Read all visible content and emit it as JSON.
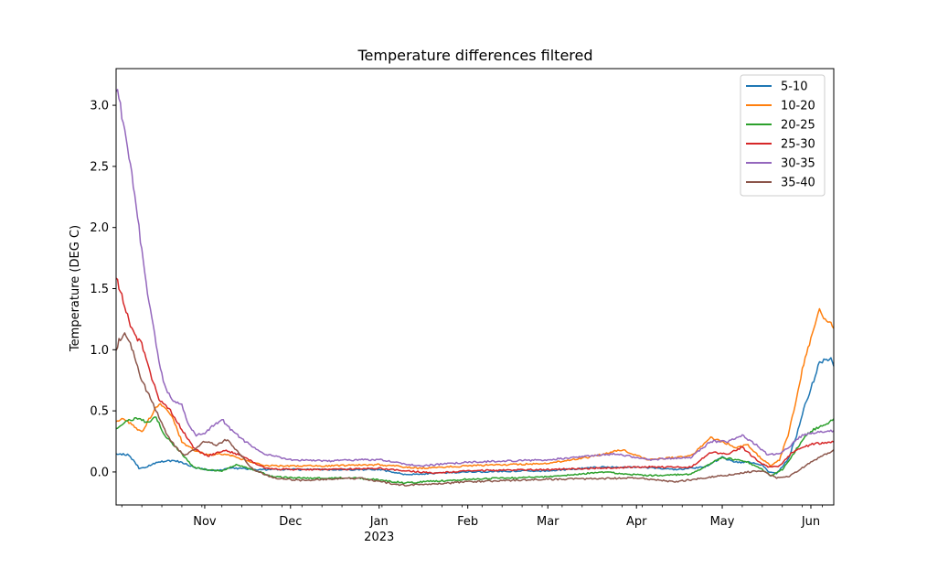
{
  "chart_data": {
    "type": "line",
    "title": "Temperature differences filtered",
    "xlabel": "",
    "ylabel": "Temperature (DEG C)",
    "x_unit": "date",
    "xlim": [
      "2022-10-01",
      "2023-06-09"
    ],
    "ylim": [
      -0.27,
      3.3
    ],
    "yticks": [
      0.0,
      0.5,
      1.0,
      1.5,
      2.0,
      2.5,
      3.0
    ],
    "ytick_labels": [
      "0.0",
      "0.5",
      "1.0",
      "1.5",
      "2.0",
      "2.5",
      "3.0"
    ],
    "xticks": [
      "2022-11-01",
      "2022-12-01",
      "2023-01-01",
      "2023-02-01",
      "2023-03-01",
      "2023-04-01",
      "2023-05-01",
      "2023-06-01"
    ],
    "xtick_labels": [
      "Nov",
      "Dec",
      "Jan",
      "Feb",
      "Mar",
      "Apr",
      "May",
      "Jun"
    ],
    "xtick_year_label": "2023",
    "grid": false,
    "legend_position": "top-right",
    "series": [
      {
        "name": "5-10",
        "color": "#1f77b4",
        "x": [
          "2022-10-01",
          "2022-10-05",
          "2022-10-07",
          "2022-10-09",
          "2022-10-11",
          "2022-10-14",
          "2022-10-18",
          "2022-10-22",
          "2022-10-25",
          "2022-10-29",
          "2022-11-05",
          "2022-11-10",
          "2022-11-20",
          "2022-12-01",
          "2022-12-15",
          "2023-01-01",
          "2023-01-10",
          "2023-02-01",
          "2023-03-01",
          "2023-03-20",
          "2023-04-01",
          "2023-04-15",
          "2023-04-25",
          "2023-05-01",
          "2023-05-05",
          "2023-05-10",
          "2023-05-15",
          "2023-05-17",
          "2023-05-20",
          "2023-05-24",
          "2023-05-27",
          "2023-05-30",
          "2023-06-02",
          "2023-06-04",
          "2023-06-06",
          "2023-06-08",
          "2023-06-09"
        ],
        "y": [
          0.15,
          0.14,
          0.1,
          0.03,
          0.03,
          0.07,
          0.09,
          0.09,
          0.07,
          0.03,
          0.01,
          0.03,
          0.02,
          0.02,
          0.02,
          0.02,
          -0.02,
          0.0,
          0.01,
          0.04,
          0.04,
          0.02,
          0.04,
          0.12,
          0.08,
          0.08,
          0.06,
          0.0,
          -0.01,
          0.1,
          0.3,
          0.55,
          0.75,
          0.9,
          0.92,
          0.93,
          0.86
        ]
      },
      {
        "name": "10-20",
        "color": "#ff7f0e",
        "x": [
          "2022-10-01",
          "2022-10-04",
          "2022-10-07",
          "2022-10-10",
          "2022-10-13",
          "2022-10-16",
          "2022-10-20",
          "2022-10-24",
          "2022-10-28",
          "2022-11-02",
          "2022-11-08",
          "2022-11-15",
          "2022-11-22",
          "2022-12-01",
          "2022-12-15",
          "2023-01-01",
          "2023-01-15",
          "2023-02-01",
          "2023-03-01",
          "2023-03-15",
          "2023-03-27",
          "2023-04-05",
          "2023-04-20",
          "2023-04-27",
          "2023-05-01",
          "2023-05-06",
          "2023-05-10",
          "2023-05-15",
          "2023-05-18",
          "2023-05-21",
          "2023-05-24",
          "2023-05-27",
          "2023-05-30",
          "2023-06-02",
          "2023-06-04",
          "2023-06-06",
          "2023-06-08",
          "2023-06-09"
        ],
        "y": [
          0.42,
          0.43,
          0.38,
          0.32,
          0.45,
          0.56,
          0.48,
          0.25,
          0.18,
          0.14,
          0.15,
          0.1,
          0.05,
          0.05,
          0.05,
          0.06,
          0.03,
          0.05,
          0.07,
          0.12,
          0.18,
          0.1,
          0.13,
          0.28,
          0.25,
          0.2,
          0.22,
          0.1,
          0.05,
          0.1,
          0.3,
          0.6,
          0.95,
          1.15,
          1.32,
          1.25,
          1.22,
          1.17
        ]
      },
      {
        "name": "20-25",
        "color": "#2ca02c",
        "x": [
          "2022-10-01",
          "2022-10-05",
          "2022-10-09",
          "2022-10-12",
          "2022-10-15",
          "2022-10-18",
          "2022-10-22",
          "2022-10-25",
          "2022-10-28",
          "2022-11-02",
          "2022-11-07",
          "2022-11-12",
          "2022-11-18",
          "2022-11-25",
          "2022-12-05",
          "2022-12-25",
          "2023-01-10",
          "2023-02-01",
          "2023-03-01",
          "2023-03-20",
          "2023-04-05",
          "2023-04-20",
          "2023-05-01",
          "2023-05-10",
          "2023-05-15",
          "2023-05-18",
          "2023-05-22",
          "2023-05-26",
          "2023-05-30",
          "2023-06-03",
          "2023-06-06",
          "2023-06-09"
        ],
        "y": [
          0.35,
          0.42,
          0.44,
          0.4,
          0.45,
          0.3,
          0.2,
          0.12,
          0.04,
          0.02,
          0.01,
          0.06,
          0.02,
          -0.04,
          -0.05,
          -0.05,
          -0.09,
          -0.06,
          -0.04,
          0.0,
          -0.03,
          -0.02,
          0.12,
          0.08,
          0.02,
          -0.03,
          0.02,
          0.15,
          0.3,
          0.36,
          0.38,
          0.43
        ]
      },
      {
        "name": "25-30",
        "color": "#d62728",
        "x": [
          "2022-10-01",
          "2022-10-02",
          "2022-10-04",
          "2022-10-06",
          "2022-10-08",
          "2022-10-10",
          "2022-10-13",
          "2022-10-16",
          "2022-10-20",
          "2022-10-24",
          "2022-10-28",
          "2022-11-02",
          "2022-11-08",
          "2022-11-15",
          "2022-11-22",
          "2022-12-01",
          "2022-12-15",
          "2023-01-01",
          "2023-01-20",
          "2023-02-01",
          "2023-03-01",
          "2023-04-01",
          "2023-04-20",
          "2023-04-27",
          "2023-05-03",
          "2023-05-08",
          "2023-05-13",
          "2023-05-17",
          "2023-05-21",
          "2023-05-25",
          "2023-05-29",
          "2023-06-02",
          "2023-06-06",
          "2023-06-09"
        ],
        "y": [
          1.61,
          1.52,
          1.35,
          1.2,
          1.1,
          1.05,
          0.8,
          0.6,
          0.5,
          0.35,
          0.2,
          0.13,
          0.18,
          0.12,
          0.03,
          0.02,
          0.02,
          0.03,
          -0.01,
          0.01,
          0.02,
          0.04,
          0.04,
          0.16,
          0.15,
          0.2,
          0.1,
          0.04,
          0.05,
          0.15,
          0.2,
          0.23,
          0.24,
          0.25
        ]
      },
      {
        "name": "30-35",
        "color": "#9467bd",
        "x": [
          "2022-10-01",
          "2022-10-02",
          "2022-10-04",
          "2022-10-06",
          "2022-10-08",
          "2022-10-10",
          "2022-10-12",
          "2022-10-14",
          "2022-10-16",
          "2022-10-18",
          "2022-10-21",
          "2022-10-24",
          "2022-10-26",
          "2022-10-29",
          "2022-11-01",
          "2022-11-04",
          "2022-11-07",
          "2022-11-10",
          "2022-11-15",
          "2022-11-22",
          "2022-12-01",
          "2022-12-15",
          "2022-12-25",
          "2023-01-01",
          "2023-01-15",
          "2023-02-01",
          "2023-03-01",
          "2023-03-25",
          "2023-04-05",
          "2023-04-20",
          "2023-04-27",
          "2023-05-03",
          "2023-05-08",
          "2023-05-13",
          "2023-05-17",
          "2023-05-21",
          "2023-05-25",
          "2023-05-29",
          "2023-06-02",
          "2023-06-06",
          "2023-06-09"
        ],
        "y": [
          3.15,
          3.05,
          2.8,
          2.5,
          2.2,
          1.8,
          1.45,
          1.2,
          0.9,
          0.7,
          0.58,
          0.55,
          0.4,
          0.3,
          0.32,
          0.38,
          0.43,
          0.35,
          0.25,
          0.15,
          0.1,
          0.09,
          0.1,
          0.1,
          0.05,
          0.08,
          0.1,
          0.15,
          0.1,
          0.12,
          0.25,
          0.25,
          0.3,
          0.22,
          0.14,
          0.15,
          0.22,
          0.3,
          0.32,
          0.33,
          0.34
        ]
      },
      {
        "name": "35-40",
        "color": "#8c564b",
        "x": [
          "2022-10-01",
          "2022-10-02",
          "2022-10-04",
          "2022-10-06",
          "2022-10-08",
          "2022-10-10",
          "2022-10-13",
          "2022-10-16",
          "2022-10-19",
          "2022-10-22",
          "2022-10-25",
          "2022-10-28",
          "2022-11-01",
          "2022-11-05",
          "2022-11-09",
          "2022-11-13",
          "2022-11-18",
          "2022-11-25",
          "2022-12-05",
          "2022-12-25",
          "2023-01-01",
          "2023-01-10",
          "2023-01-20",
          "2023-02-01",
          "2023-03-01",
          "2023-04-01",
          "2023-04-15",
          "2023-04-27",
          "2023-05-05",
          "2023-05-10",
          "2023-05-15",
          "2023-05-20",
          "2023-05-25",
          "2023-05-30",
          "2023-06-04",
          "2023-06-09"
        ],
        "y": [
          0.98,
          1.08,
          1.12,
          1.05,
          0.9,
          0.75,
          0.6,
          0.45,
          0.3,
          0.2,
          0.13,
          0.18,
          0.25,
          0.22,
          0.27,
          0.15,
          0.02,
          -0.05,
          -0.07,
          -0.05,
          -0.08,
          -0.11,
          -0.1,
          -0.08,
          -0.06,
          -0.05,
          -0.08,
          -0.04,
          -0.02,
          0.0,
          0.01,
          -0.05,
          -0.03,
          0.05,
          0.12,
          0.18
        ]
      }
    ]
  }
}
